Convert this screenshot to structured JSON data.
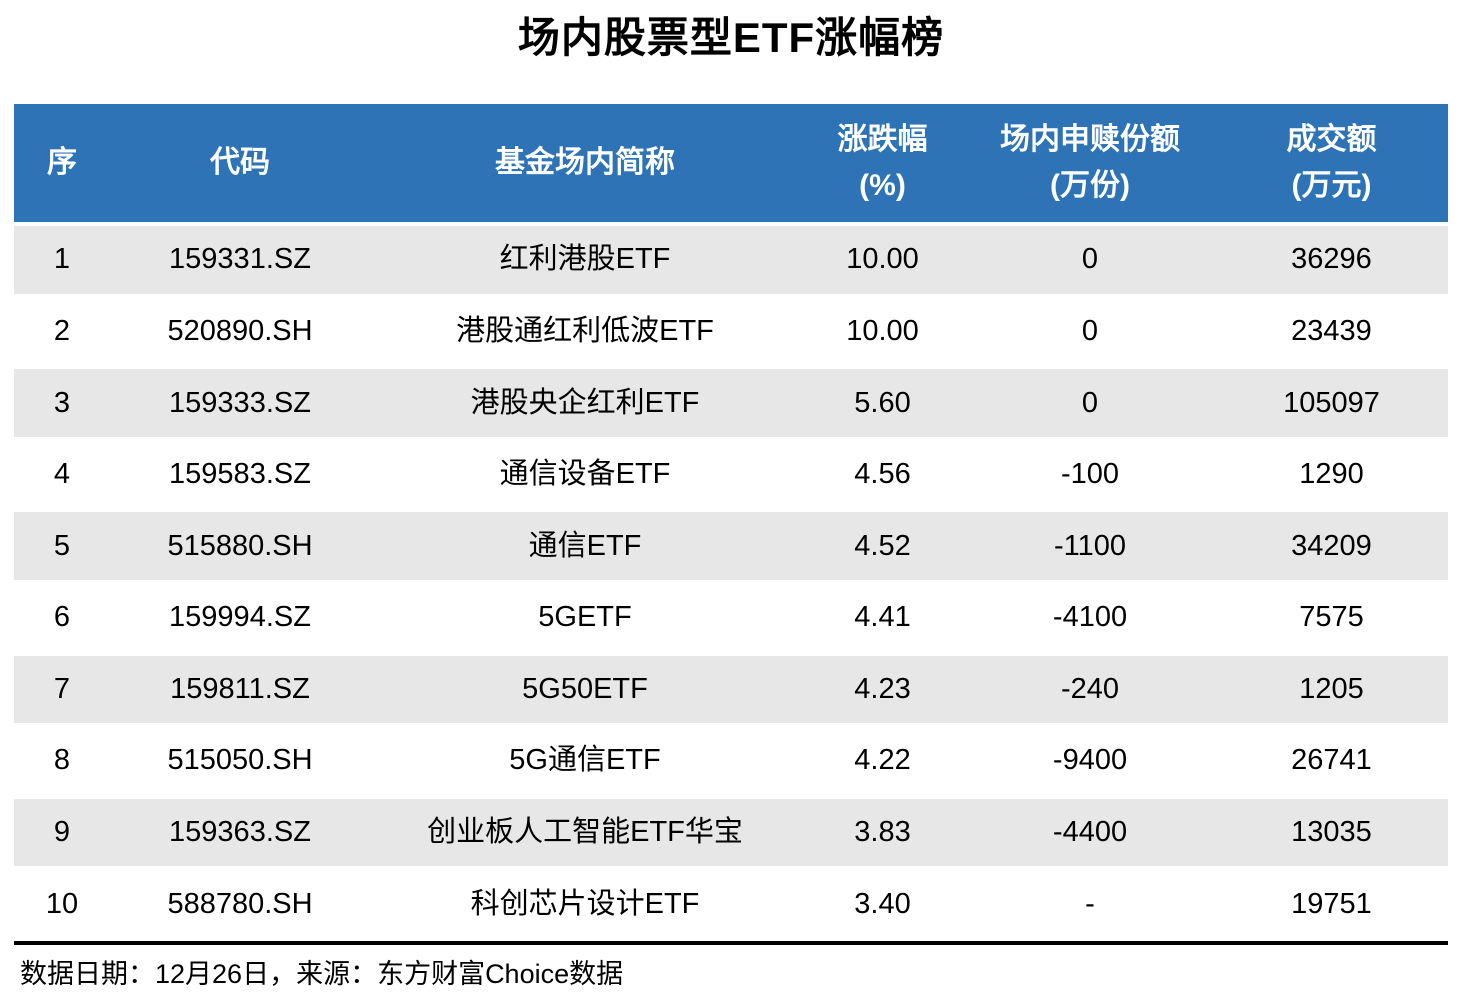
{
  "title": "场内股票型ETF涨幅榜",
  "chart_data": {
    "type": "table",
    "title": "场内股票型ETF涨幅榜",
    "columns": [
      {
        "key": "seq",
        "label": "序",
        "unit": ""
      },
      {
        "key": "code",
        "label": "代码",
        "unit": ""
      },
      {
        "key": "name",
        "label": "基金场内简称",
        "unit": ""
      },
      {
        "key": "change_pct",
        "label": "涨跌幅",
        "unit": "(%)"
      },
      {
        "key": "shares_wan",
        "label": "场内申赎份额",
        "unit": "(万份)"
      },
      {
        "key": "turnover_wan",
        "label": "成交额",
        "unit": "(万元)"
      }
    ],
    "rows": [
      {
        "seq": "1",
        "code": "159331.SZ",
        "name": "红利港股ETF",
        "change_pct": "10.00",
        "shares_wan": "0",
        "turnover_wan": "36296"
      },
      {
        "seq": "2",
        "code": "520890.SH",
        "name": "港股通红利低波ETF",
        "change_pct": "10.00",
        "shares_wan": "0",
        "turnover_wan": "23439"
      },
      {
        "seq": "3",
        "code": "159333.SZ",
        "name": "港股央企红利ETF",
        "change_pct": "5.60",
        "shares_wan": "0",
        "turnover_wan": "105097"
      },
      {
        "seq": "4",
        "code": "159583.SZ",
        "name": "通信设备ETF",
        "change_pct": "4.56",
        "shares_wan": "-100",
        "turnover_wan": "1290"
      },
      {
        "seq": "5",
        "code": "515880.SH",
        "name": "通信ETF",
        "change_pct": "4.52",
        "shares_wan": "-1100",
        "turnover_wan": "34209"
      },
      {
        "seq": "6",
        "code": "159994.SZ",
        "name": "5GETF",
        "change_pct": "4.41",
        "shares_wan": "-4100",
        "turnover_wan": "7575"
      },
      {
        "seq": "7",
        "code": "159811.SZ",
        "name": "5G50ETF",
        "change_pct": "4.23",
        "shares_wan": "-240",
        "turnover_wan": "1205"
      },
      {
        "seq": "8",
        "code": "515050.SH",
        "name": "5G通信ETF",
        "change_pct": "4.22",
        "shares_wan": "-9400",
        "turnover_wan": "26741"
      },
      {
        "seq": "9",
        "code": "159363.SZ",
        "name": "创业板人工智能ETF华宝",
        "change_pct": "3.83",
        "shares_wan": "-4400",
        "turnover_wan": "13035"
      },
      {
        "seq": "10",
        "code": "588780.SH",
        "name": "科创芯片设计ETF",
        "change_pct": "3.40",
        "shares_wan": "-",
        "turnover_wan": "19751"
      }
    ],
    "layout": {
      "header_two_line_columns": [
        "change_pct",
        "shares_wan",
        "turnover_wan"
      ],
      "zebra_striping": "odd-rows-gray",
      "grid": "horizontal-white-gaps-only"
    }
  },
  "footer": {
    "text": "数据日期：12月26日，来源：东方财富Choice数据"
  },
  "colors": {
    "header_bg": "#2e73b6",
    "header_text": "#ffffff",
    "row_alt_bg": "#e7e7e7",
    "row_bg": "#ffffff",
    "text": "#000000",
    "rule": "#000000"
  }
}
